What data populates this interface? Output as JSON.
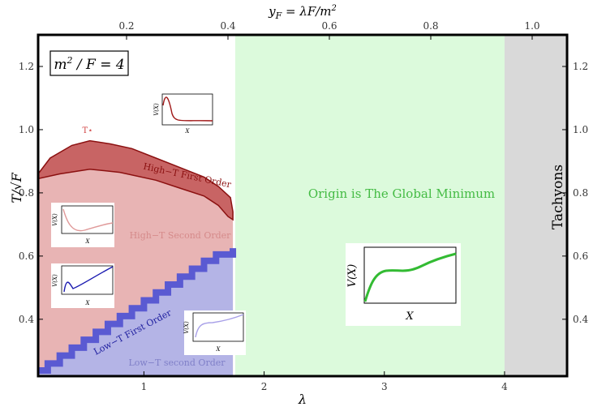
{
  "chart_data": {
    "type": "area",
    "xlabel": "λ",
    "ylabel": "T/√F",
    "top_axis_label": "y_F = λF/m²",
    "xlim": [
      0.12,
      4.52
    ],
    "ylim": [
      0.22,
      1.3
    ],
    "x_ticks": [
      1,
      2,
      3,
      4
    ],
    "y_ticks": [
      0.4,
      0.6,
      0.8,
      1.0,
      1.2
    ],
    "top_ticks": [
      0.2,
      0.4,
      0.6,
      0.8,
      1.0
    ],
    "x_tick_labels": [
      "1",
      "2",
      "3",
      "4"
    ],
    "y_tick_labels": [
      "0.4",
      "0.6",
      "0.8",
      "1.0",
      "1.2"
    ],
    "top_tick_labels": [
      "0.2",
      "0.4",
      "0.6",
      "0.8",
      "1.0"
    ],
    "legend_box": "m²/F = 4",
    "regions": [
      {
        "label": "High−T First Order",
        "color": "#c86464"
      },
      {
        "label": "High−T Second Order",
        "color": "#e8b4b4"
      },
      {
        "label": "Low−T First Order",
        "color": "#5a5ad2"
      },
      {
        "label": "Low−T second Order",
        "color": "#b4b4e6"
      },
      {
        "label": "Origin is The Global Minimum",
        "color": "#dcfadc"
      },
      {
        "label": "Tachyons",
        "color": "#d9d9d9"
      }
    ],
    "region_boundaries": {
      "origin_start_lambda": 1.76,
      "tachyon_start_lambda": 4.0,
      "first_order_top": [
        [
          0.12,
          0.86
        ],
        [
          0.22,
          0.91
        ],
        [
          0.4,
          0.95
        ],
        [
          0.55,
          0.965
        ],
        [
          0.72,
          0.955
        ],
        [
          0.9,
          0.94
        ],
        [
          1.1,
          0.91
        ],
        [
          1.3,
          0.88
        ],
        [
          1.5,
          0.85
        ],
        [
          1.62,
          0.82
        ],
        [
          1.72,
          0.785
        ],
        [
          1.74,
          0.74
        ],
        [
          1.74,
          0.715
        ]
      ],
      "first_order_bottom": [
        [
          0.12,
          0.845
        ],
        [
          0.3,
          0.86
        ],
        [
          0.55,
          0.875
        ],
        [
          0.8,
          0.865
        ],
        [
          1.1,
          0.84
        ],
        [
          1.3,
          0.815
        ],
        [
          1.5,
          0.79
        ],
        [
          1.62,
          0.76
        ],
        [
          1.7,
          0.725
        ],
        [
          1.74,
          0.715
        ]
      ],
      "low_t_first_order_staircase": [
        [
          0.12,
          0.238
        ],
        [
          0.2,
          0.26
        ],
        [
          0.3,
          0.285
        ],
        [
          0.4,
          0.31
        ],
        [
          0.5,
          0.335
        ],
        [
          0.6,
          0.36
        ],
        [
          0.7,
          0.385
        ],
        [
          0.8,
          0.41
        ],
        [
          0.9,
          0.435
        ],
        [
          1.0,
          0.46
        ],
        [
          1.1,
          0.485
        ],
        [
          1.2,
          0.51
        ],
        [
          1.3,
          0.535
        ],
        [
          1.4,
          0.56
        ],
        [
          1.5,
          0.585
        ],
        [
          1.6,
          0.605
        ],
        [
          1.74,
          0.625
        ]
      ]
    },
    "special_point_label": "T⋆",
    "special_point": [
      0.55,
      0.985
    ]
  },
  "annotations": {
    "high_t_first": "High−T First Order",
    "high_t_second": "High−T Second Order",
    "low_t_first": "Low−T First Order",
    "low_t_second": "Low−T second Order",
    "origin_label": "Origin is The Global Minimum",
    "tachyons": "Tachyons",
    "legend": "m²/F = 4",
    "tstar": "T⋆"
  },
  "insets": {
    "axis_v": "V(X)",
    "axis_x": "X",
    "items": [
      {
        "name": "inset-high-t-first",
        "color": "#a01818"
      },
      {
        "name": "inset-high-t-second",
        "color": "#e09a9a"
      },
      {
        "name": "inset-low-t-first",
        "color": "#1a1ab0"
      },
      {
        "name": "inset-low-t-second",
        "color": "#a8a0e8"
      },
      {
        "name": "inset-origin",
        "color": "#33bb33"
      }
    ]
  }
}
